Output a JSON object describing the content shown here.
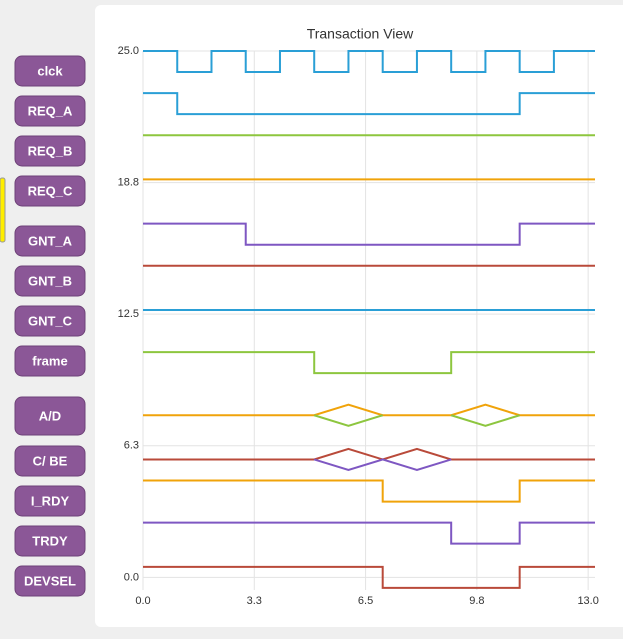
{
  "chart_data": {
    "type": "timing",
    "title": "Transaction View",
    "xlim": [
      0,
      13.2
    ],
    "ylim": [
      -0.6,
      25
    ],
    "xticks": [
      {
        "value": 0,
        "label": "0.0"
      },
      {
        "value": 3.25,
        "label": "3.3"
      },
      {
        "value": 6.5,
        "label": "6.5"
      },
      {
        "value": 9.75,
        "label": "9.8"
      },
      {
        "value": 13,
        "label": "13.0"
      }
    ],
    "yticks": [
      {
        "value": 0,
        "label": "0.0"
      },
      {
        "value": 6.25,
        "label": "6.3"
      },
      {
        "value": 12.5,
        "label": "12.5"
      },
      {
        "value": 18.75,
        "label": "18.8"
      },
      {
        "value": 25,
        "label": "25.0"
      }
    ],
    "grid": true,
    "series": [
      {
        "name": "clck",
        "color": "#2a9fd6",
        "traces": [
          {
            "x": [
              0,
              1,
              1,
              2,
              2,
              3,
              3,
              4,
              4,
              5,
              5,
              6,
              6,
              7,
              7,
              8,
              8,
              9,
              9,
              10,
              10,
              11,
              11,
              12,
              12,
              13.2
            ],
            "values": [
              25,
              25,
              24,
              24,
              25,
              25,
              24,
              24,
              25,
              25,
              24,
              24,
              25,
              25,
              24,
              24,
              25,
              25,
              24,
              24,
              25,
              25,
              24,
              24,
              25,
              25
            ]
          }
        ]
      },
      {
        "name": "REQ_A",
        "color": "#2a9fd6",
        "traces": [
          {
            "x": [
              0,
              1,
              1,
              11,
              11,
              13.2
            ],
            "values": [
              23,
              23,
              22,
              22,
              23,
              23
            ]
          }
        ]
      },
      {
        "name": "REQ_B",
        "color": "#8dc63f",
        "traces": [
          {
            "x": [
              0,
              13.2
            ],
            "values": [
              21,
              21
            ]
          }
        ]
      },
      {
        "name": "REQ_C",
        "color": "#f0a30a",
        "traces": [
          {
            "x": [
              0,
              13.2
            ],
            "values": [
              18.9,
              18.9
            ]
          }
        ]
      },
      {
        "name": "GNT_A",
        "color": "#7e57c2",
        "traces": [
          {
            "x": [
              0,
              3,
              3,
              11,
              11,
              13.2
            ],
            "values": [
              16.8,
              16.8,
              15.8,
              15.8,
              16.8,
              16.8
            ]
          }
        ]
      },
      {
        "name": "GNT_B",
        "color": "#b94a3a",
        "traces": [
          {
            "x": [
              0,
              13.2
            ],
            "values": [
              14.8,
              14.8
            ]
          }
        ]
      },
      {
        "name": "GNT_C",
        "color": "#2a9fd6",
        "traces": [
          {
            "x": [
              0,
              13.2
            ],
            "values": [
              12.7,
              12.7
            ]
          }
        ]
      },
      {
        "name": "frame",
        "color": "#8dc63f",
        "traces": [
          {
            "x": [
              0,
              5,
              5,
              9,
              9,
              13.2
            ],
            "values": [
              10.7,
              10.7,
              9.7,
              9.7,
              10.7,
              10.7
            ]
          }
        ]
      },
      {
        "name": "A/D",
        "color": "#f0a30a",
        "traces": [
          {
            "x": [
              0,
              5,
              6,
              7,
              9,
              10,
              11,
              13.2
            ],
            "values": [
              7.7,
              7.7,
              8.2,
              7.7,
              7.7,
              8.2,
              7.7,
              7.7
            ]
          },
          {
            "x": [
              5,
              6,
              7
            ],
            "values": [
              7.7,
              7.2,
              7.7
            ],
            "color": "#8dc63f"
          },
          {
            "x": [
              9,
              10,
              11
            ],
            "values": [
              7.7,
              7.2,
              7.7
            ],
            "color": "#8dc63f"
          }
        ]
      },
      {
        "name": "C/ BE",
        "color": "#b94a3a",
        "traces": [
          {
            "x": [
              0,
              5,
              6,
              7,
              8,
              9,
              13.2
            ],
            "values": [
              5.6,
              5.6,
              6.1,
              5.6,
              6.1,
              5.6,
              5.6
            ]
          },
          {
            "x": [
              5,
              6,
              7,
              8,
              9
            ],
            "values": [
              5.6,
              5.1,
              5.6,
              5.1,
              5.6
            ],
            "color": "#7e57c2"
          }
        ]
      },
      {
        "name": "I_RDY",
        "color": "#f0a30a",
        "traces": [
          {
            "x": [
              0,
              7,
              7,
              11,
              11,
              13.2
            ],
            "values": [
              4.6,
              4.6,
              3.6,
              3.6,
              4.6,
              4.6
            ]
          }
        ]
      },
      {
        "name": "TRDY",
        "color": "#7e57c2",
        "traces": [
          {
            "x": [
              0,
              9,
              9,
              11,
              11,
              13.2
            ],
            "values": [
              2.6,
              2.6,
              1.6,
              1.6,
              2.6,
              2.6
            ]
          }
        ]
      },
      {
        "name": "DEVSEL",
        "color": "#b94a3a",
        "traces": [
          {
            "x": [
              0,
              7,
              7,
              11,
              11,
              13.2
            ],
            "values": [
              0.5,
              0.5,
              -0.5,
              -0.5,
              0.5,
              0.5
            ]
          }
        ]
      }
    ]
  }
}
